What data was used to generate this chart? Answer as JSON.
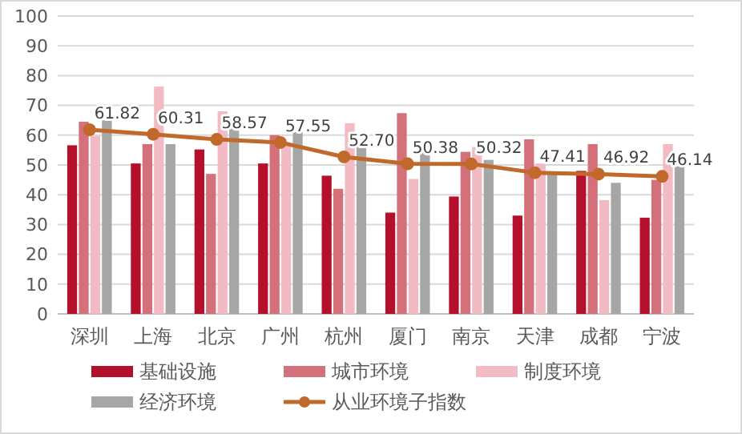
{
  "chart_data": {
    "type": "bar",
    "categories": [
      "深圳",
      "上海",
      "北京",
      "广州",
      "杭州",
      "厦门",
      "南京",
      "天津",
      "成都",
      "宁波"
    ],
    "series": [
      {
        "name": "基础设施",
        "color": "#b5102b",
        "values": [
          56.6,
          50.5,
          55.2,
          50.5,
          46.4,
          34,
          39.4,
          33,
          48,
          32.3
        ]
      },
      {
        "name": "城市环境",
        "color": "#d4707a",
        "values": [
          64.5,
          57,
          47,
          60,
          42,
          67.4,
          54.4,
          58.6,
          57,
          45
        ]
      },
      {
        "name": "制度环境",
        "color": "#f2bac3",
        "values": [
          59.7,
          76.3,
          68,
          57,
          64,
          45.3,
          56,
          50.5,
          38.2,
          57
        ]
      },
      {
        "name": "经济环境",
        "color": "#a6a6a6",
        "values": [
          65,
          57,
          63,
          61,
          57.5,
          54.4,
          51.7,
          47,
          44,
          49.5
        ]
      },
      {
        "name": "从业环境子指数",
        "type": "line",
        "color": "#c0692a",
        "marker": "circle",
        "values": [
          61.82,
          60.31,
          58.57,
          57.55,
          52.7,
          50.38,
          50.32,
          47.41,
          46.92,
          46.14
        ],
        "value_labels": [
          "61.82",
          "60.31",
          "58.57",
          "57.55",
          "52.70",
          "50.38",
          "50.32",
          "47.41",
          "46.92",
          "46.14"
        ]
      }
    ],
    "ylim": [
      0,
      100
    ],
    "yticks": [
      0,
      10,
      20,
      30,
      40,
      50,
      60,
      70,
      80,
      90,
      100
    ],
    "grid": "y",
    "legend": "bottom"
  }
}
